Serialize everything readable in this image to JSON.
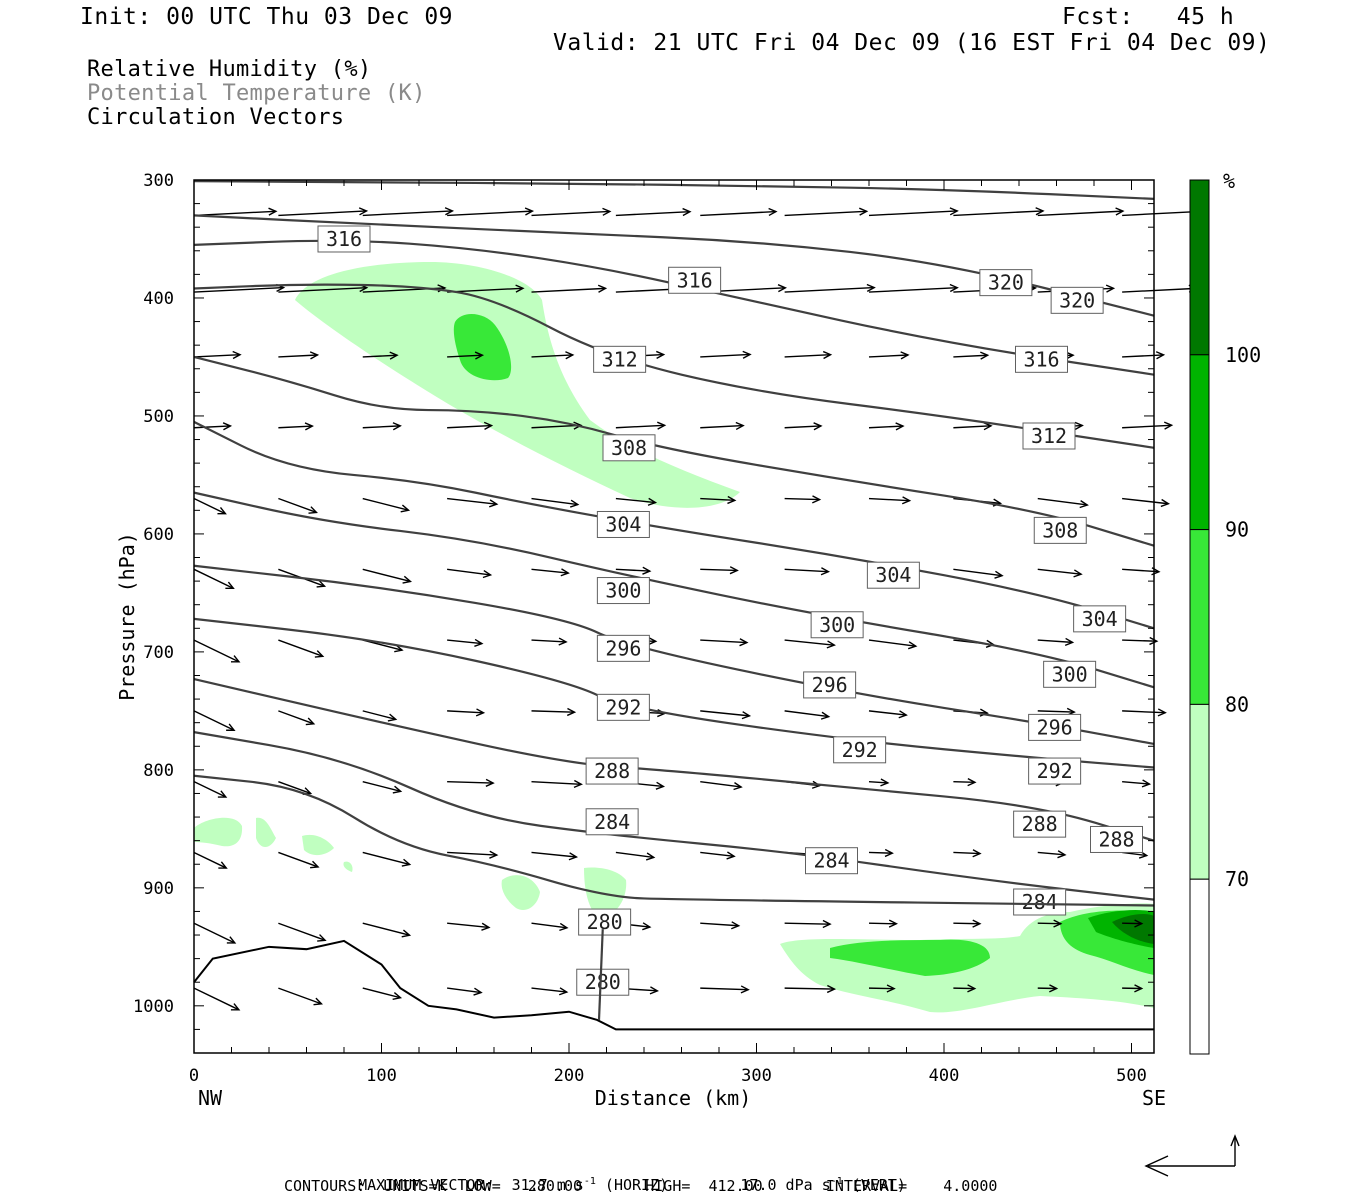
{
  "header": {
    "init": "Init: 00 UTC Thu 03 Dec 09",
    "fcst": "Fcst:   45 h",
    "valid": "Valid: 21 UTC Fri 04 Dec 09 (16 EST Fri 04 Dec 09)"
  },
  "fields": {
    "rh": "Relative Humidity (%)",
    "theta": "Potential Temperature (K)",
    "vectors": "Circulation Vectors"
  },
  "footer": {
    "maxvec_prefix": "MAXIMUM VECTOR:  31.7 m s",
    "maxvec_exp1": "-1",
    "maxvec_mid": " (HORIZ)        17.0 dPa s",
    "maxvec_exp2": "-1",
    "maxvec_suffix": " (VERT)",
    "contours": "CONTOURS:  UNITS=K  LOW=   280.00       HIGH=  412.00       INTERVAL=    4.0000"
  },
  "colors": {
    "rh_70_80": "#c0ffc0",
    "rh_80_90": "#38e838",
    "rh_90_100": "#00b400",
    "rh_100_plus": "#007800",
    "contour": "#404040",
    "vector": "#000000",
    "axis": "#000000"
  },
  "chart_data": {
    "type": "cross-section",
    "xlabel": "Distance (km)",
    "ylabel": "Pressure (hPa)",
    "xlim": [
      0,
      512
    ],
    "ylim": [
      1040,
      300
    ],
    "x_ticks": [
      0,
      100,
      200,
      300,
      400,
      500
    ],
    "y_ticks": [
      300,
      400,
      500,
      600,
      700,
      800,
      900,
      1000
    ],
    "x_end_labels": {
      "left": "NW",
      "right": "SE"
    },
    "colorbar": {
      "unit": "%",
      "levels": [
        70,
        80,
        90,
        100
      ],
      "labels": [
        "70",
        "80",
        "90",
        "100"
      ]
    },
    "theta_contours": [
      {
        "value": 320,
        "points": [
          [
            0,
            301
          ],
          [
            100,
            302
          ],
          [
            200,
            303
          ],
          [
            300,
            305
          ],
          [
            400,
            308
          ],
          [
            512,
            316
          ]
        ],
        "labels": []
      },
      {
        "value": 320,
        "points": [
          [
            0,
            330
          ],
          [
            100,
            338
          ],
          [
            200,
            345
          ],
          [
            300,
            352
          ],
          [
            400,
            370
          ],
          [
            512,
            415
          ]
        ],
        "labels": [
          [
            433,
            387
          ],
          [
            471,
            402
          ]
        ]
      },
      {
        "value": 316,
        "points": [
          [
            0,
            355
          ],
          [
            80,
            350
          ],
          [
            150,
            358
          ],
          [
            220,
            375
          ],
          [
            290,
            400
          ],
          [
            400,
            438
          ],
          [
            512,
            465
          ]
        ],
        "labels": [
          [
            80,
            350
          ],
          [
            267,
            385
          ],
          [
            452,
            452
          ]
        ]
      },
      {
        "value": 312,
        "points": [
          [
            0,
            392
          ],
          [
            60,
            388
          ],
          [
            120,
            390
          ],
          [
            160,
            400
          ],
          [
            220,
            450
          ],
          [
            300,
            480
          ],
          [
            400,
            500
          ],
          [
            512,
            527
          ]
        ],
        "labels": [
          [
            227,
            452
          ],
          [
            456,
            517
          ]
        ]
      },
      {
        "value": 308,
        "points": [
          [
            0,
            450
          ],
          [
            50,
            470
          ],
          [
            100,
            495
          ],
          [
            150,
            495
          ],
          [
            200,
            505
          ],
          [
            250,
            528
          ],
          [
            350,
            555
          ],
          [
            450,
            580
          ],
          [
            512,
            610
          ]
        ],
        "labels": [
          [
            232,
            527
          ],
          [
            462,
            597
          ]
        ]
      },
      {
        "value": 304,
        "points": [
          [
            0,
            505
          ],
          [
            50,
            545
          ],
          [
            120,
            555
          ],
          [
            180,
            575
          ],
          [
            250,
            595
          ],
          [
            350,
            620
          ],
          [
            450,
            650
          ],
          [
            512,
            680
          ]
        ],
        "labels": [
          [
            229,
            592
          ],
          [
            373,
            635
          ],
          [
            483,
            672
          ]
        ]
      },
      {
        "value": 300,
        "points": [
          [
            0,
            565
          ],
          [
            70,
            590
          ],
          [
            150,
            605
          ],
          [
            230,
            635
          ],
          [
            330,
            668
          ],
          [
            450,
            700
          ],
          [
            512,
            730
          ]
        ],
        "labels": [
          [
            229,
            648
          ],
          [
            343,
            677
          ],
          [
            467,
            719
          ]
        ]
      },
      {
        "value": 296,
        "points": [
          [
            0,
            627
          ],
          [
            100,
            645
          ],
          [
            200,
            672
          ],
          [
            230,
            695
          ],
          [
            350,
            735
          ],
          [
            450,
            760
          ],
          [
            512,
            778
          ]
        ],
        "labels": [
          [
            229,
            697
          ],
          [
            339,
            728
          ],
          [
            459,
            764
          ]
        ]
      },
      {
        "value": 292,
        "points": [
          [
            0,
            672
          ],
          [
            100,
            690
          ],
          [
            200,
            725
          ],
          [
            230,
            748
          ],
          [
            350,
            775
          ],
          [
            450,
            790
          ],
          [
            512,
            798
          ]
        ],
        "labels": [
          [
            229,
            747
          ],
          [
            355,
            783
          ],
          [
            459,
            801
          ]
        ]
      },
      {
        "value": 288,
        "points": [
          [
            0,
            723
          ],
          [
            100,
            760
          ],
          [
            200,
            795
          ],
          [
            250,
            800
          ],
          [
            350,
            815
          ],
          [
            450,
            830
          ],
          [
            512,
            860
          ]
        ],
        "labels": [
          [
            223,
            801
          ],
          [
            451,
            846
          ],
          [
            492,
            859
          ]
        ]
      },
      {
        "value": 284,
        "points": [
          [
            0,
            768
          ],
          [
            80,
            790
          ],
          [
            150,
            840
          ],
          [
            220,
            855
          ],
          [
            320,
            870
          ],
          [
            420,
            893
          ],
          [
            512,
            910
          ]
        ],
        "labels": [
          [
            223,
            844
          ],
          [
            340,
            877
          ],
          [
            451,
            912
          ]
        ]
      },
      {
        "value": 280,
        "points": [
          [
            0,
            805
          ],
          [
            60,
            815
          ],
          [
            110,
            865
          ],
          [
            160,
            880
          ],
          [
            220,
            908
          ],
          [
            260,
            910
          ],
          [
            512,
            915
          ]
        ],
        "labels": [
          [
            219,
            929
          ],
          [
            218,
            980
          ]
        ]
      }
    ],
    "terrain_surface": [
      [
        0,
        980
      ],
      [
        10,
        960
      ],
      [
        40,
        950
      ],
      [
        60,
        952
      ],
      [
        80,
        945
      ],
      [
        100,
        965
      ],
      [
        110,
        985
      ],
      [
        125,
        1000
      ],
      [
        140,
        1003
      ],
      [
        160,
        1010
      ],
      [
        180,
        1008
      ],
      [
        200,
        1005
      ],
      [
        215,
        1012
      ],
      [
        225,
        1020
      ],
      [
        300,
        1020
      ],
      [
        512,
        1020
      ]
    ],
    "vectors": {
      "columns_km": [
        0,
        45,
        90,
        135,
        180,
        225,
        270,
        315,
        360,
        405,
        450,
        495
      ],
      "rows_hpa": [
        330,
        395,
        450,
        510,
        570,
        630,
        690,
        750,
        810,
        870,
        930,
        985
      ]
    }
  }
}
